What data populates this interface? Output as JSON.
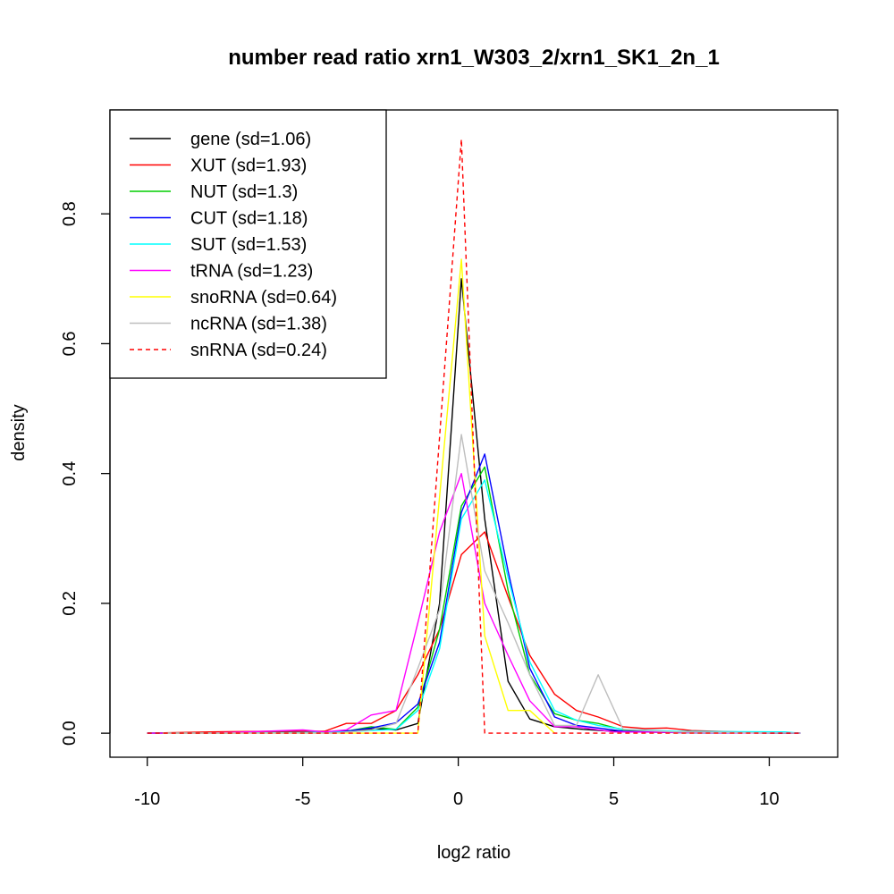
{
  "chart_data": {
    "type": "line",
    "title": "number read ratio xrn1_W303_2/xrn1_SK1_2n_1",
    "xlabel": "log2 ratio",
    "ylabel": "density",
    "xlim": [
      -11.2,
      12.2
    ],
    "ylim": [
      -0.037,
      0.96
    ],
    "xticks": [
      -10,
      -5,
      0,
      5,
      10
    ],
    "yticks": [
      0.0,
      0.2,
      0.4,
      0.6,
      0.8
    ],
    "xtick_labels": [
      "-10",
      "-5",
      "0",
      "5",
      "10"
    ],
    "ytick_labels": [
      "0.0",
      "0.2",
      "0.4",
      "0.6",
      "0.8"
    ],
    "legend_position": "top-left",
    "series": [
      {
        "name": "gene (sd=1.06)",
        "color": "#000000",
        "dash": false,
        "points": [
          [
            -10,
            0
          ],
          [
            -8,
            0
          ],
          [
            -6,
            0.001
          ],
          [
            -4.3,
            0.002
          ],
          [
            -3.4,
            0.004
          ],
          [
            -2.6,
            0.007
          ],
          [
            -2,
            0.005
          ],
          [
            -1.3,
            0.015
          ],
          [
            -0.6,
            0.2
          ],
          [
            0.1,
            0.7
          ],
          [
            0.85,
            0.33
          ],
          [
            1.6,
            0.08
          ],
          [
            2.3,
            0.022
          ],
          [
            3.1,
            0.01
          ],
          [
            4,
            0.006
          ],
          [
            5,
            0.003
          ],
          [
            7,
            0.001
          ],
          [
            11,
            0
          ]
        ]
      },
      {
        "name": "XUT (sd=1.93)",
        "color": "#ff0000",
        "dash": false,
        "points": [
          [
            -10,
            0
          ],
          [
            -8,
            0.002
          ],
          [
            -6,
            0.003
          ],
          [
            -5,
            0.003
          ],
          [
            -4.3,
            0.003
          ],
          [
            -3.6,
            0.015
          ],
          [
            -2.8,
            0.015
          ],
          [
            -2,
            0.035
          ],
          [
            -1.3,
            0.09
          ],
          [
            -0.6,
            0.16
          ],
          [
            0.1,
            0.275
          ],
          [
            0.85,
            0.31
          ],
          [
            1.6,
            0.21
          ],
          [
            2.3,
            0.12
          ],
          [
            3.1,
            0.06
          ],
          [
            3.8,
            0.035
          ],
          [
            4.5,
            0.025
          ],
          [
            5.3,
            0.01
          ],
          [
            6,
            0.007
          ],
          [
            6.7,
            0.008
          ],
          [
            7.5,
            0.004
          ],
          [
            9,
            0.002
          ],
          [
            11,
            0
          ]
        ]
      },
      {
        "name": "NUT (sd=1.3)",
        "color": "#00cd00",
        "dash": false,
        "points": [
          [
            -10,
            0
          ],
          [
            -8,
            0
          ],
          [
            -5,
            0.001
          ],
          [
            -3.6,
            0.003
          ],
          [
            -2.8,
            0.01
          ],
          [
            -2,
            0.006
          ],
          [
            -1.3,
            0.04
          ],
          [
            -0.6,
            0.16
          ],
          [
            0.1,
            0.35
          ],
          [
            0.85,
            0.41
          ],
          [
            1.6,
            0.22
          ],
          [
            2.3,
            0.09
          ],
          [
            3.1,
            0.03
          ],
          [
            3.8,
            0.02
          ],
          [
            4.5,
            0.015
          ],
          [
            5.3,
            0.005
          ],
          [
            7,
            0.002
          ],
          [
            11,
            0
          ]
        ]
      },
      {
        "name": "CUT (sd=1.18)",
        "color": "#0000ff",
        "dash": false,
        "points": [
          [
            -10,
            0
          ],
          [
            -8,
            0
          ],
          [
            -5,
            0.001
          ],
          [
            -3.6,
            0.003
          ],
          [
            -2.8,
            0.008
          ],
          [
            -2,
            0.016
          ],
          [
            -1.3,
            0.045
          ],
          [
            -0.6,
            0.14
          ],
          [
            0.1,
            0.34
          ],
          [
            0.85,
            0.43
          ],
          [
            1.6,
            0.25
          ],
          [
            2.3,
            0.1
          ],
          [
            3.1,
            0.025
          ],
          [
            3.8,
            0.012
          ],
          [
            4.5,
            0.008
          ],
          [
            5.3,
            0.003
          ],
          [
            7,
            0.001
          ],
          [
            11,
            0
          ]
        ]
      },
      {
        "name": "SUT (sd=1.53)",
        "color": "#00ffff",
        "dash": false,
        "points": [
          [
            -10,
            0
          ],
          [
            -8,
            0
          ],
          [
            -5,
            0.001
          ],
          [
            -3.6,
            0.002
          ],
          [
            -2.8,
            0.004
          ],
          [
            -2,
            0.006
          ],
          [
            -1.3,
            0.035
          ],
          [
            -0.6,
            0.13
          ],
          [
            0.1,
            0.33
          ],
          [
            0.85,
            0.39
          ],
          [
            1.6,
            0.24
          ],
          [
            2.3,
            0.11
          ],
          [
            3.1,
            0.035
          ],
          [
            3.8,
            0.02
          ],
          [
            4.5,
            0.012
          ],
          [
            5.3,
            0.006
          ],
          [
            7,
            0.003
          ],
          [
            10.5,
            0.002
          ],
          [
            11,
            0
          ]
        ]
      },
      {
        "name": "tRNA (sd=1.23)",
        "color": "#ff00ff",
        "dash": false,
        "points": [
          [
            -10,
            0
          ],
          [
            -8,
            0
          ],
          [
            -5,
            0.005
          ],
          [
            -4.3,
            0.002
          ],
          [
            -3.6,
            0.005
          ],
          [
            -2.8,
            0.028
          ],
          [
            -2,
            0.035
          ],
          [
            -1.3,
            0.17
          ],
          [
            -0.6,
            0.31
          ],
          [
            0.1,
            0.4
          ],
          [
            0.85,
            0.2
          ],
          [
            1.6,
            0.12
          ],
          [
            2.3,
            0.05
          ],
          [
            3.1,
            0.01
          ],
          [
            3.8,
            0.01
          ],
          [
            5,
            0.002
          ],
          [
            11,
            0
          ]
        ]
      },
      {
        "name": "snoRNA (sd=0.64)",
        "color": "#ffff00",
        "dash": false,
        "points": [
          [
            -9.5,
            0
          ],
          [
            -1.3,
            0
          ],
          [
            0.1,
            0.73
          ],
          [
            0.85,
            0.15
          ],
          [
            1.6,
            0.035
          ],
          [
            2.3,
            0.035
          ],
          [
            3.1,
            0
          ]
        ]
      },
      {
        "name": "ncRNA (sd=1.38)",
        "color": "#bebebe",
        "dash": false,
        "points": [
          [
            -9.5,
            0
          ],
          [
            -4,
            0
          ],
          [
            -2.8,
            0.005
          ],
          [
            -2,
            0.015
          ],
          [
            -1.3,
            0.1
          ],
          [
            -0.6,
            0.19
          ],
          [
            0.1,
            0.46
          ],
          [
            0.85,
            0.25
          ],
          [
            1.6,
            0.17
          ],
          [
            2.3,
            0.09
          ],
          [
            3.1,
            0.012
          ],
          [
            3.8,
            0.012
          ],
          [
            4.5,
            0.09
          ],
          [
            5.3,
            0.006
          ],
          [
            6,
            0.004
          ],
          [
            7,
            0.002
          ],
          [
            11,
            0
          ]
        ]
      },
      {
        "name": "snRNA (sd=0.24)",
        "color": "#ff0000",
        "dash": true,
        "points": [
          [
            -10,
            0
          ],
          [
            -1.3,
            0
          ],
          [
            0.1,
            0.915
          ],
          [
            0.85,
            0
          ],
          [
            11,
            0
          ]
        ]
      }
    ]
  }
}
